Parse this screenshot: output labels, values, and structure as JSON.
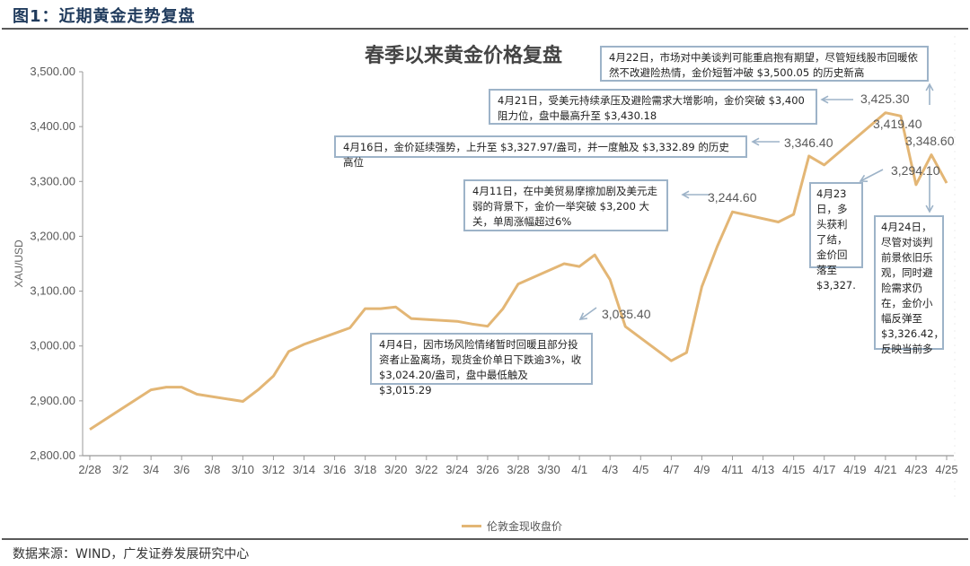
{
  "figure": {
    "title": "图1：近期黄金走势复盘",
    "source": "数据来源：WIND，广发证券发展研究中心"
  },
  "chart": {
    "title": "春季以来黄金价格复盘",
    "y_axis_label": "XAU/USD",
    "legend_label": "伦敦金现收盘价",
    "line_color": "#e3b675",
    "annotation_border_color": "#9db3c8",
    "value_labels": {
      "apr4": "3,035.40",
      "apr11": "3,244.60",
      "apr16": "3,346.40",
      "apr21": "3,425.30",
      "apr22": "3,419.40",
      "apr23": "3,294.10",
      "apr24": "3,348.60"
    },
    "notes": {
      "apr22": "4月22日，市场对中美谈判可能重启抱有期望，尽管短线股市回暖依然不改避险热情，金价短暂冲破 $3,500.05 的历史新高",
      "apr21": "4月21日，受美元持续承压及避险需求大增影响，金价突破 $3,400 阻力位，盘中最高升至 $3,430.18",
      "apr16": "4月16日，金价延续强势，上升至 $3,327.97/盎司，并一度触及 $3,332.89 的历史高位",
      "apr11": "4月11日，在中美贸易摩擦加剧及美元走弱的背景下，金价一举突破 $3,200 大关，单周涨幅超过6%",
      "apr4": "4月4日，因市场风险情绪暂时回暖且部分投资者止盈离场，现货金价单日下跌逾3%，收 $3,024.20/盎司，盘中最低触及 $3,015.29",
      "apr23": "4月23日，多头获利了结，金价回落至 $3,327.",
      "apr24": "4月24日，尽管对谈判前景依旧乐观，同时避险需求仍在，金价小幅反弹至 $3,326.42，反映当前多"
    }
  },
  "chart_data": {
    "type": "line",
    "title": "春季以来黄金价格复盘",
    "xlabel": "",
    "ylabel": "XAU/USD",
    "ylim": [
      2800,
      3500
    ],
    "y_ticks": [
      "2,800.00",
      "2,900.00",
      "3,000.00",
      "3,100.00",
      "3,200.00",
      "3,300.00",
      "3,400.00",
      "3,500.00"
    ],
    "x_ticks": [
      "2/28",
      "3/2",
      "3/4",
      "3/6",
      "3/8",
      "3/10",
      "3/12",
      "3/14",
      "3/16",
      "3/18",
      "3/20",
      "3/22",
      "3/24",
      "3/26",
      "3/28",
      "3/30",
      "4/1",
      "4/3",
      "4/5",
      "4/7",
      "4/9",
      "4/11",
      "4/13",
      "4/15",
      "4/17",
      "4/19",
      "4/21",
      "4/23",
      "4/25"
    ],
    "grid": false,
    "legend_position": "bottom",
    "series": [
      {
        "name": "伦敦金现收盘价",
        "x": [
          "2/28",
          "3/4",
          "3/5",
          "3/6",
          "3/7",
          "3/10",
          "3/11",
          "3/12",
          "3/13",
          "3/14",
          "3/17",
          "3/18",
          "3/19",
          "3/20",
          "3/21",
          "3/24",
          "3/25",
          "3/26",
          "3/27",
          "3/28",
          "3/31",
          "4/1",
          "4/2",
          "4/3",
          "4/4",
          "4/7",
          "4/8",
          "4/9",
          "4/10",
          "4/11",
          "4/14",
          "4/15",
          "4/16",
          "4/17",
          "4/21",
          "4/22",
          "4/23",
          "4/24",
          "4/25"
        ],
        "day_index": [
          0,
          4,
          5,
          6,
          7,
          10,
          11,
          12,
          13,
          14,
          17,
          18,
          19,
          20,
          21,
          24,
          25,
          26,
          27,
          28,
          31,
          32,
          33,
          34,
          35,
          38,
          39,
          40,
          41,
          42,
          45,
          46,
          47,
          48,
          52,
          53,
          54,
          55,
          56
        ],
        "values": [
          2848,
          2920,
          2925,
          2925,
          2912,
          2899,
          2920,
          2945,
          2990,
          3003,
          3033,
          3068,
          3068,
          3071,
          3050,
          3045,
          3040,
          3036,
          3068,
          3113,
          3150,
          3145,
          3166,
          3121,
          3035.4,
          2973,
          2988,
          3108,
          3181,
          3244.6,
          3226,
          3240,
          3346.4,
          3330,
          3425.3,
          3419.4,
          3294.1,
          3348.6,
          3297
        ]
      }
    ],
    "annotations": [
      {
        "date": "4/4",
        "label": "3,035.40"
      },
      {
        "date": "4/11",
        "label": "3,244.60"
      },
      {
        "date": "4/16",
        "label": "3,346.40"
      },
      {
        "date": "4/21",
        "label": "3,425.30"
      },
      {
        "date": "4/22",
        "label": "3,419.40"
      },
      {
        "date": "4/23",
        "label": "3,294.10"
      },
      {
        "date": "4/24",
        "label": "3,348.60"
      }
    ]
  }
}
